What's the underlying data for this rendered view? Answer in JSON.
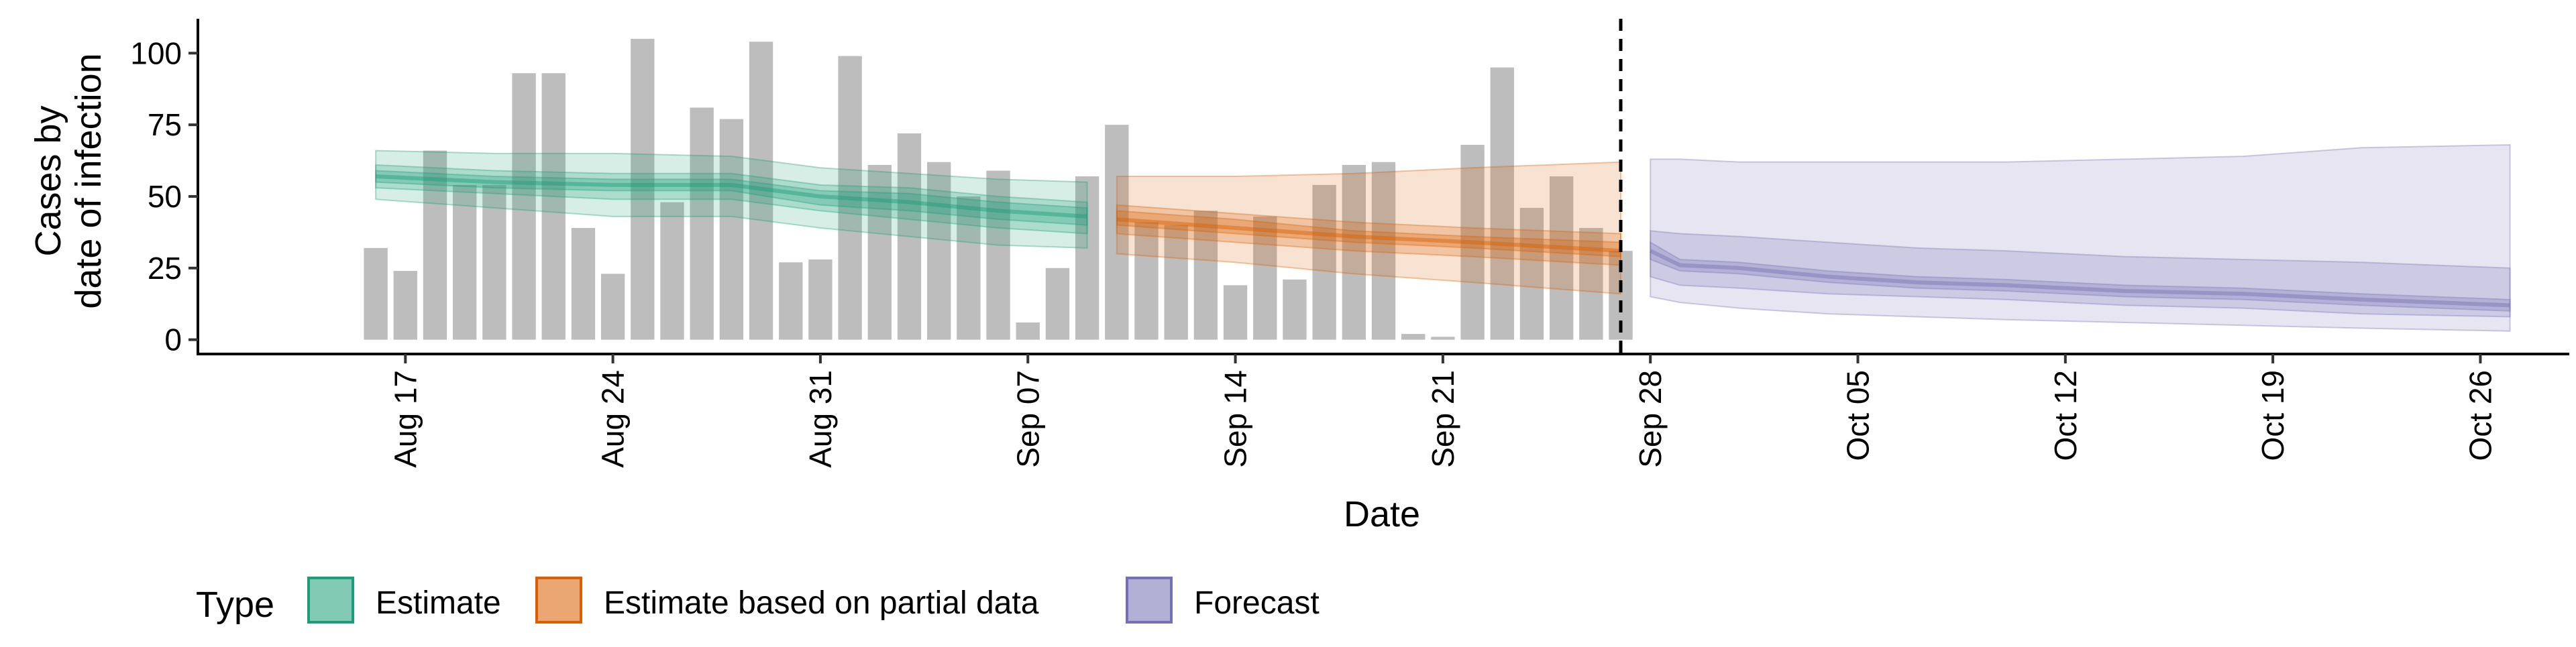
{
  "chart_data": {
    "type": "bar",
    "title": "",
    "xlabel": "Date",
    "ylabel_lines": [
      "Cases by",
      "date of infection"
    ],
    "xlim": [
      "2020-08-10",
      "2020-10-29"
    ],
    "ylim": [
      -5,
      112
    ],
    "x_ticks": [
      {
        "date": "2020-08-17",
        "label": "Aug 17"
      },
      {
        "date": "2020-08-24",
        "label": "Aug 24"
      },
      {
        "date": "2020-08-31",
        "label": "Aug 31"
      },
      {
        "date": "2020-09-07",
        "label": "Sep 07"
      },
      {
        "date": "2020-09-14",
        "label": "Sep 14"
      },
      {
        "date": "2020-09-21",
        "label": "Sep 21"
      },
      {
        "date": "2020-09-28",
        "label": "Sep 28"
      },
      {
        "date": "2020-10-05",
        "label": "Oct 05"
      },
      {
        "date": "2020-10-12",
        "label": "Oct 12"
      },
      {
        "date": "2020-10-19",
        "label": "Oct 19"
      },
      {
        "date": "2020-10-26",
        "label": "Oct 26"
      }
    ],
    "y_ticks": [
      0,
      25,
      50,
      75,
      100
    ],
    "grid": false,
    "vline_date": "2020-09-27",
    "bars": {
      "color": "#bdbdbd",
      "dates": [
        "2020-08-16",
        "2020-08-17",
        "2020-08-18",
        "2020-08-19",
        "2020-08-20",
        "2020-08-21",
        "2020-08-22",
        "2020-08-23",
        "2020-08-24",
        "2020-08-25",
        "2020-08-26",
        "2020-08-27",
        "2020-08-28",
        "2020-08-29",
        "2020-08-30",
        "2020-08-31",
        "2020-09-01",
        "2020-09-02",
        "2020-09-03",
        "2020-09-04",
        "2020-09-05",
        "2020-09-06",
        "2020-09-07",
        "2020-09-08",
        "2020-09-09",
        "2020-09-10",
        "2020-09-11",
        "2020-09-12",
        "2020-09-13",
        "2020-09-14",
        "2020-09-15",
        "2020-09-16",
        "2020-09-17",
        "2020-09-18",
        "2020-09-19",
        "2020-09-20",
        "2020-09-21",
        "2020-09-22",
        "2020-09-23",
        "2020-09-24",
        "2020-09-25",
        "2020-09-26",
        "2020-09-27"
      ],
      "values": [
        32,
        24,
        66,
        54,
        54,
        93,
        93,
        39,
        23,
        105,
        48,
        81,
        77,
        104,
        27,
        28,
        99,
        61,
        72,
        62,
        50,
        59,
        6,
        25,
        57,
        75,
        41,
        40,
        45,
        19,
        43,
        21,
        54,
        61,
        62,
        2,
        1,
        68,
        95,
        46,
        57,
        39,
        31
      ]
    },
    "series": [
      {
        "name": "Estimate",
        "color": "#1b9e77",
        "dates": [
          "2020-08-16",
          "2020-08-20",
          "2020-08-24",
          "2020-08-28",
          "2020-08-31",
          "2020-09-03",
          "2020-09-06",
          "2020-09-09"
        ],
        "median": [
          57,
          55,
          54,
          54,
          50,
          48,
          45,
          43
        ],
        "lower_20": [
          55,
          53,
          52,
          52,
          47,
          45,
          42,
          40
        ],
        "upper_20": [
          59,
          57,
          56,
          56,
          52,
          51,
          48,
          46
        ],
        "lower_50": [
          53,
          51,
          49,
          49,
          45,
          42,
          39,
          37
        ],
        "upper_50": [
          61,
          59,
          58,
          58,
          54,
          53,
          50,
          48
        ],
        "lower_90": [
          49,
          46,
          43,
          43,
          39,
          36,
          33,
          32
        ],
        "upper_90": [
          66,
          65,
          65,
          64,
          60,
          58,
          56,
          55
        ]
      },
      {
        "name": "Estimate based on partial data",
        "color": "#d95f02",
        "dates": [
          "2020-09-10",
          "2020-09-14",
          "2020-09-18",
          "2020-09-22",
          "2020-09-27"
        ],
        "median": [
          42,
          39,
          36,
          34,
          31
        ],
        "lower_20": [
          40,
          37,
          34,
          32,
          29
        ],
        "upper_20": [
          45,
          42,
          38,
          36,
          34
        ],
        "lower_50": [
          37,
          34,
          31,
          29,
          26
        ],
        "upper_50": [
          47,
          44,
          41,
          39,
          37
        ],
        "lower_90": [
          30,
          27,
          23,
          20,
          16
        ],
        "upper_90": [
          57,
          57,
          58,
          60,
          62
        ]
      },
      {
        "name": "Forecast",
        "color": "#7570b3",
        "dates": [
          "2020-09-28",
          "2020-09-29",
          "2020-10-01",
          "2020-10-04",
          "2020-10-07",
          "2020-10-10",
          "2020-10-14",
          "2020-10-18",
          "2020-10-22",
          "2020-10-27"
        ],
        "median": [
          31,
          26,
          25,
          22,
          20,
          19,
          17,
          16,
          14,
          12
        ],
        "lower_20": [
          28,
          24,
          23,
          20,
          18,
          17,
          15,
          14,
          12,
          10
        ],
        "upper_20": [
          34,
          28,
          27,
          24,
          22,
          21,
          19,
          18,
          16,
          14
        ],
        "lower_50": [
          22,
          19,
          18,
          16,
          15,
          14,
          12,
          11,
          9,
          8
        ],
        "upper_50": [
          38,
          37,
          36,
          34,
          32,
          31,
          29,
          28,
          27,
          25
        ],
        "lower_90": [
          15,
          13,
          11,
          9,
          8,
          7,
          6,
          5,
          4,
          3
        ],
        "upper_90": [
          63,
          63,
          62,
          62,
          62,
          62,
          63,
          64,
          67,
          68
        ]
      }
    ],
    "legend": {
      "title": "Type",
      "position": "bottom-left",
      "items": [
        "Estimate",
        "Estimate based on partial data",
        "Forecast"
      ]
    }
  }
}
